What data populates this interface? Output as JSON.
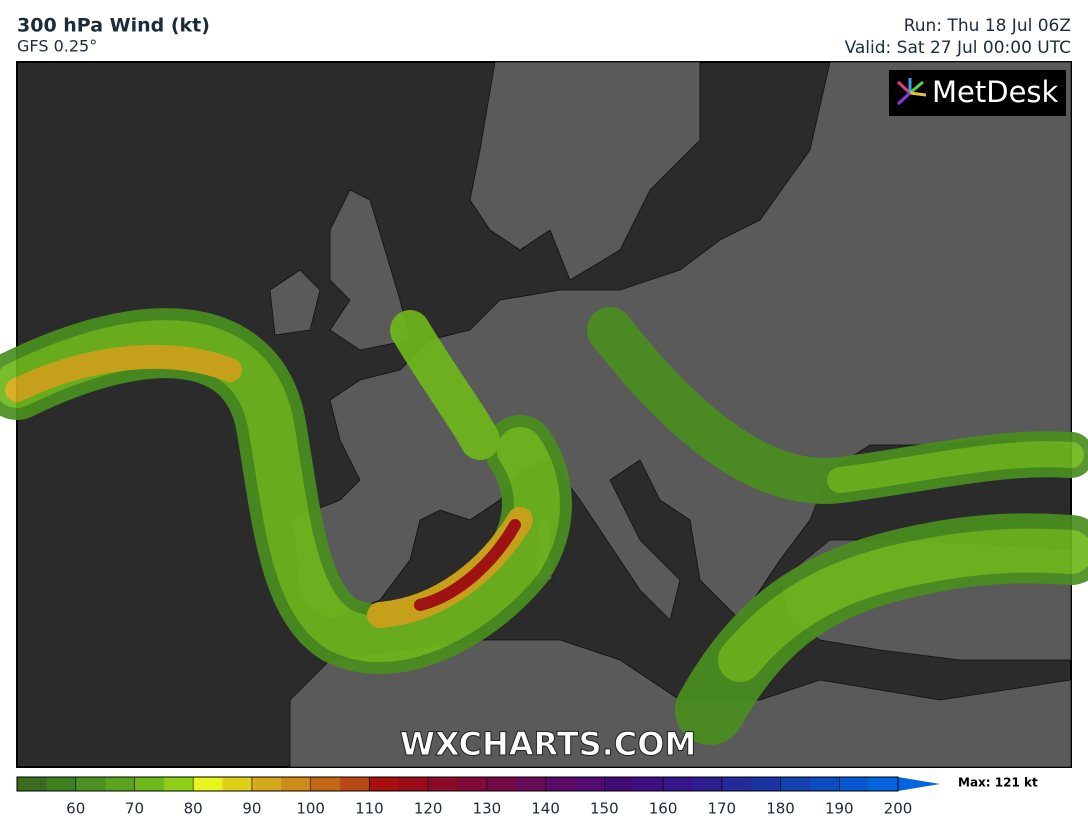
{
  "header": {
    "title": "300 hPa Wind (kt)",
    "model": "GFS 0.25°",
    "run": "Run: Thu 18 Jul 06Z",
    "valid": "Valid: Sat 27 Jul 00:00 UTC"
  },
  "logo": "MetDesk",
  "watermark": "WXCHARTS.COM",
  "colorbar": {
    "lim": [
      50,
      200
    ],
    "ticks": [
      60,
      70,
      80,
      90,
      100,
      110,
      120,
      130,
      140,
      150,
      160,
      170,
      180,
      190,
      200
    ],
    "colors": [
      "#3a6b1e",
      "#3f7d1f",
      "#4a8f1f",
      "#5aa31e",
      "#6eb81c",
      "#8fd11a",
      "#e6f51c",
      "#e0d01a",
      "#d4a91a",
      "#cc8a18",
      "#c46816",
      "#b84814",
      "#a81010",
      "#9a0a18",
      "#8c0a28",
      "#800a38",
      "#740a48",
      "#680a58",
      "#5c0a68",
      "#500a70",
      "#440a78",
      "#3c0e80",
      "#341488",
      "#2c1c90",
      "#242898",
      "#1c34a4",
      "#1440b0",
      "#0c4cc0",
      "#0858d0",
      "#0464e0"
    ],
    "max_label": "Max: 121 kt"
  }
}
